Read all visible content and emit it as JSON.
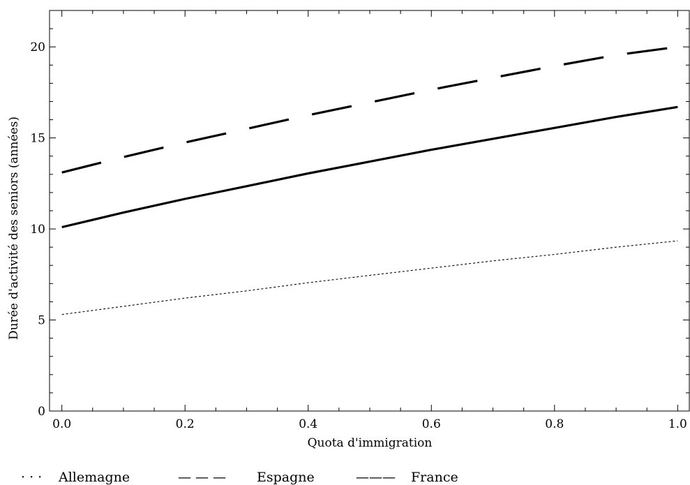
{
  "chart_data": {
    "type": "line",
    "title": "",
    "xlabel": "Quota d'immigration",
    "ylabel": "Durée d'activité des seniors (années)",
    "xlim": [
      -0.02,
      1.02
    ],
    "ylim": [
      0,
      22
    ],
    "xticks": [
      0.0,
      0.2,
      0.4,
      0.6,
      0.8,
      1.0
    ],
    "xtick_labels": [
      "0.0",
      "0.2",
      "0.4",
      "0.6",
      "0.8",
      "1.0"
    ],
    "yticks": [
      0,
      5,
      10,
      15,
      20
    ],
    "ytick_labels": [
      "0",
      "5",
      "10",
      "15",
      "20"
    ],
    "grid": false,
    "legend_position": "bottom",
    "x": [
      0.0,
      0.1,
      0.2,
      0.3,
      0.4,
      0.5,
      0.6,
      0.7,
      0.8,
      0.9,
      1.0
    ],
    "series": [
      {
        "name": "Allemagne",
        "style": "dotted",
        "values": [
          5.3,
          5.75,
          6.2,
          6.6,
          7.05,
          7.45,
          7.85,
          8.25,
          8.6,
          9.0,
          9.35
        ]
      },
      {
        "name": "Espagne",
        "style": "dashed",
        "values": [
          13.1,
          13.95,
          14.75,
          15.5,
          16.25,
          16.95,
          17.65,
          18.3,
          18.95,
          19.55,
          20.0
        ]
      },
      {
        "name": "France",
        "style": "solid",
        "values": [
          10.1,
          10.9,
          11.65,
          12.35,
          13.05,
          13.7,
          14.35,
          14.95,
          15.55,
          16.15,
          16.7
        ]
      }
    ],
    "legend": {
      "allemagne": {
        "symbol": "· · ·",
        "label": "Allemagne"
      },
      "espagne": {
        "symbol": "— — —",
        "label": "Espagne"
      },
      "france": {
        "symbol": "———",
        "label": "France"
      }
    },
    "colors": {
      "line": "#000000",
      "frame": "#000000"
    }
  }
}
